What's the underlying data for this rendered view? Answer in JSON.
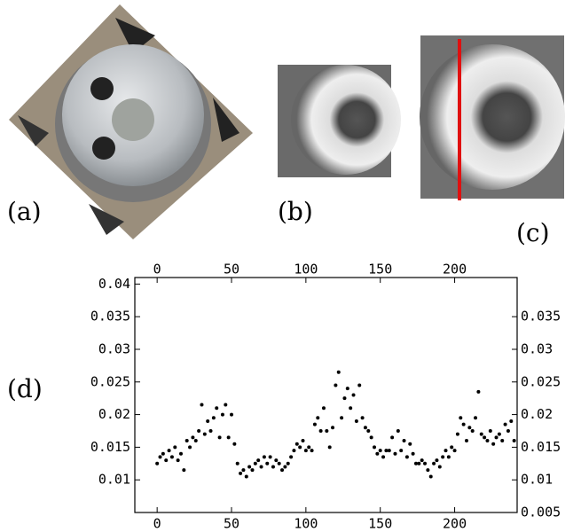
{
  "panel_labels": {
    "a": "(a)",
    "b": "(b)",
    "c": "(c)",
    "d": "(d)"
  },
  "chart_data": {
    "type": "scatter",
    "color": "#000000",
    "x": [
      0,
      2,
      4,
      6,
      8,
      10,
      12,
      14,
      16,
      18,
      20,
      22,
      24,
      26,
      28,
      30,
      32,
      34,
      36,
      38,
      40,
      42,
      44,
      46,
      48,
      50,
      52,
      54,
      56,
      58,
      60,
      62,
      64,
      66,
      68,
      70,
      72,
      74,
      76,
      78,
      80,
      82,
      84,
      86,
      88,
      90,
      92,
      94,
      96,
      98,
      100,
      102,
      104,
      106,
      108,
      110,
      112,
      114,
      116,
      118,
      120,
      122,
      124,
      126,
      128,
      130,
      132,
      134,
      136,
      138,
      140,
      142,
      144,
      146,
      148,
      150,
      152,
      154,
      156,
      158,
      160,
      162,
      164,
      166,
      168,
      170,
      172,
      174,
      176,
      178,
      180,
      182,
      184,
      186,
      188,
      190,
      192,
      194,
      196,
      198,
      200,
      202,
      204,
      206,
      208,
      210,
      212,
      214,
      216,
      218,
      220,
      222,
      224,
      226,
      228,
      230,
      232,
      234,
      236,
      238,
      240
    ],
    "values": [
      0.0125,
      0.0135,
      0.014,
      0.013,
      0.0145,
      0.0135,
      0.015,
      0.013,
      0.014,
      0.0115,
      0.016,
      0.015,
      0.0165,
      0.016,
      0.0175,
      0.0215,
      0.017,
      0.019,
      0.0175,
      0.0195,
      0.021,
      0.0165,
      0.02,
      0.0215,
      0.0165,
      0.02,
      0.0155,
      0.0125,
      0.011,
      0.0115,
      0.0105,
      0.012,
      0.0115,
      0.0125,
      0.013,
      0.012,
      0.0135,
      0.0125,
      0.0135,
      0.012,
      0.013,
      0.0125,
      0.0115,
      0.012,
      0.0125,
      0.0135,
      0.0145,
      0.0155,
      0.015,
      0.016,
      0.0145,
      0.015,
      0.0145,
      0.0185,
      0.0195,
      0.0175,
      0.021,
      0.0175,
      0.015,
      0.018,
      0.0245,
      0.0265,
      0.0195,
      0.0225,
      0.024,
      0.021,
      0.023,
      0.019,
      0.0245,
      0.0195,
      0.018,
      0.0175,
      0.0165,
      0.015,
      0.014,
      0.0145,
      0.0135,
      0.0145,
      0.0145,
      0.0165,
      0.014,
      0.0175,
      0.0145,
      0.016,
      0.0135,
      0.0155,
      0.014,
      0.0125,
      0.0125,
      0.013,
      0.0125,
      0.0115,
      0.0105,
      0.0125,
      0.013,
      0.012,
      0.0135,
      0.0145,
      0.0135,
      0.015,
      0.0145,
      0.017,
      0.0195,
      0.0185,
      0.016,
      0.018,
      0.0175,
      0.0195,
      0.0235,
      0.017,
      0.0165,
      0.016,
      0.0175,
      0.0155,
      0.0165,
      0.017,
      0.016,
      0.0185,
      0.0175,
      0.019,
      0.016
    ],
    "xlim": [
      -15,
      242
    ],
    "xticks": [
      0,
      50,
      100,
      150,
      200
    ],
    "x2ticks": [
      0,
      50,
      100,
      150,
      200
    ],
    "ylim": [
      0.005,
      0.041
    ],
    "yticks": [
      0.01,
      0.015,
      0.02,
      0.025,
      0.03,
      0.035,
      0.04
    ],
    "y2lim": [
      0.005,
      0.041
    ],
    "y2ticks": [
      0.005,
      0.01,
      0.015,
      0.02,
      0.025,
      0.03,
      0.035
    ]
  }
}
